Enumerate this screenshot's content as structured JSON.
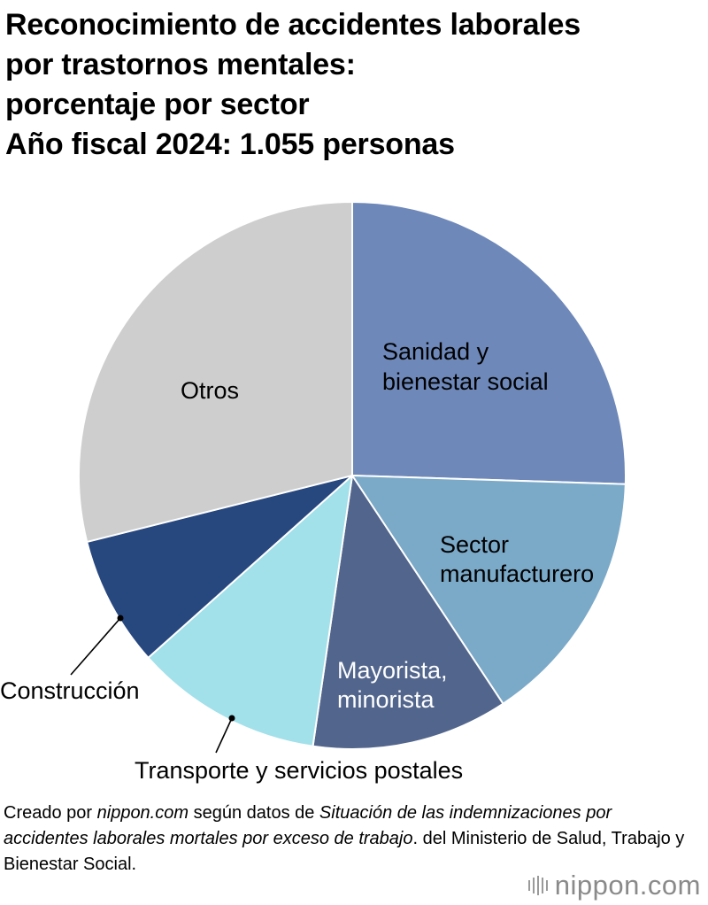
{
  "title_lines": [
    "Reconocimiento de accidentes laborales",
    "por trastornos mentales:",
    "porcentaje por sector",
    "Año fiscal 2024: 1.055 personas"
  ],
  "chart_data": {
    "type": "pie",
    "title": "Reconocimiento de accidentes laborales por trastornos mentales: porcentaje por sector. Año fiscal 2024: 1.055 personas",
    "start_angle_deg": 0,
    "direction": "clockwise",
    "slices": [
      {
        "label": "Sanidad y bienestar social",
        "value": 25.5,
        "color": "#6d88b9"
      },
      {
        "label": "Sector manufacturero",
        "value": 15.2,
        "color": "#7ba9c8"
      },
      {
        "label": "Mayorista, minorista",
        "value": 11.6,
        "color": "#52658c"
      },
      {
        "label": "Transporte y servicios postales",
        "value": 11.1,
        "color": "#a2e0ea"
      },
      {
        "label": "Construcción",
        "value": 7.7,
        "color": "#27477f"
      },
      {
        "label": "Otros",
        "value": 28.9,
        "color": "#cecece"
      }
    ]
  },
  "labels": {
    "sanidad": [
      "Sanidad y",
      "bienestar social"
    ],
    "manufactura": [
      "Sector",
      "manufacturero"
    ],
    "mayorista": [
      "Mayorista,",
      "minorista"
    ],
    "transporte": "Transporte y servicios postales",
    "construccion": "Construcción",
    "otros": "Otros"
  },
  "source": {
    "p1": "Creado por ",
    "site": "nippon.com",
    "p2": " según datos de ",
    "doc": "Situación de las indemnizaciones por accidentes laborales mortales por exceso de trabajo",
    "p3": ". del Ministerio de Salud, Trabajo y Bienestar Social."
  },
  "logo_text": "nippon.com"
}
